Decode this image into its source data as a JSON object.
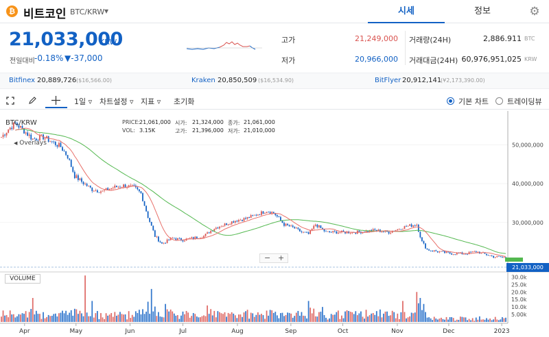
{
  "header": {
    "coin_icon": "bitcoin-icon",
    "coin_symbol_glyph": "₿",
    "coin_name": "비트코인",
    "pair": "BTC/KRW",
    "caret": "▾",
    "tabs": [
      {
        "label": "시세",
        "active": true
      },
      {
        "label": "정보",
        "active": false
      }
    ],
    "settings_icon": "gear-icon",
    "settings_glyph": "⚙"
  },
  "summary": {
    "price": "21,033,000",
    "unit": "KRW",
    "change_label": "전일대비",
    "change_pct": "-0.18%",
    "change_abs": "▼-37,000",
    "high_label": "고가",
    "high_value": "21,249,000",
    "low_label": "저가",
    "low_value": "20,966,000",
    "volume_label": "거래량(24H)",
    "volume_value": "2,886.911",
    "volume_unit": "BTC",
    "turnover_label": "거래대금(24H)",
    "turnover_value": "60,976,951,025",
    "turnover_unit": "KRW"
  },
  "exchanges": [
    {
      "name": "Bitfinex",
      "price": "20,889,726",
      "usd": "($16,566.00)"
    },
    {
      "name": "Kraken",
      "price": "20,850,509",
      "usd": "($16,534.90)"
    },
    {
      "name": "BitFlyer",
      "price": "20,912,141",
      "usd": "(¥2,173,390.00)"
    }
  ],
  "toolbar": {
    "fullscreen_icon": "fullscreen-icon",
    "draw_icon": "pencil-icon",
    "crosshair_icon": "crosshair-icon",
    "interval": "1일",
    "chart_settings": "차트설정",
    "indicators": "지표",
    "reset": "초기화",
    "basic_chart": "기본 차트",
    "trading_view": "트레이딩뷰",
    "dropdown_glyph": "▿"
  },
  "ohlc": {
    "price_label": "PRICE:",
    "price": "21,061,000",
    "vol_label": "VOL:",
    "vol": "3.15K",
    "open_label": "시가:",
    "open": "21,324,000",
    "high_label": "고가:",
    "high": "21,396,000",
    "close_label": "종가:",
    "close": "21,061,000",
    "low_label": "저가:",
    "low": "21,010,000"
  },
  "chart_labels": {
    "symbol": "BTC/KRW",
    "overlays": "Overlays",
    "volume": "VOLUME",
    "zoom_out": "−",
    "zoom_in": "+",
    "last_price": "21,033,000"
  },
  "colors": {
    "accent": "#1261c4",
    "up": "#d9534f",
    "down": "#1261c4",
    "ma_short": "#e8706a",
    "ma_long": "#53b84f",
    "high": "#d9534f"
  },
  "chart_data": {
    "type": "candlestick",
    "x_ticks": [
      "Apr",
      "May",
      "Jun",
      "Jul",
      "Aug",
      "Sep",
      "Oct",
      "Nov",
      "Dec",
      "2023"
    ],
    "y_ticks": [
      "50,000,000",
      "40,000,000",
      "30,000,000"
    ],
    "y_tick_values": [
      50000000,
      40000000,
      30000000
    ],
    "volume_ticks": [
      "30.0k",
      "25.0k",
      "20.0k",
      "15.0k",
      "10.0k",
      "5.00k"
    ],
    "volume_tick_values": [
      30000,
      25000,
      20000,
      15000,
      10000,
      5000
    ],
    "ylim": [
      18500000,
      58000000
    ],
    "volume_max": 32000,
    "last": 21033000,
    "close_anchors": [
      [
        0,
        52000000
      ],
      [
        4,
        54000000
      ],
      [
        8,
        55500000
      ],
      [
        12,
        54000000
      ],
      [
        18,
        51500000
      ],
      [
        24,
        52000000
      ],
      [
        30,
        50500000
      ],
      [
        34,
        49500000
      ],
      [
        38,
        47000000
      ],
      [
        42,
        42000000
      ],
      [
        46,
        40500000
      ],
      [
        52,
        38500000
      ],
      [
        58,
        38000000
      ],
      [
        64,
        39000000
      ],
      [
        70,
        39500000
      ],
      [
        76,
        39000000
      ],
      [
        80,
        37500000
      ],
      [
        84,
        31500000
      ],
      [
        88,
        26500000
      ],
      [
        92,
        24500000
      ],
      [
        98,
        26000000
      ],
      [
        104,
        25500000
      ],
      [
        110,
        26000000
      ],
      [
        116,
        26500000
      ],
      [
        122,
        28500000
      ],
      [
        128,
        29500000
      ],
      [
        134,
        30500000
      ],
      [
        140,
        31000000
      ],
      [
        146,
        32000000
      ],
      [
        152,
        33000000
      ],
      [
        156,
        32500000
      ],
      [
        162,
        29500000
      ],
      [
        168,
        28500000
      ],
      [
        172,
        27500000
      ],
      [
        176,
        27000000
      ],
      [
        180,
        29500000
      ],
      [
        186,
        27500000
      ],
      [
        194,
        27500000
      ],
      [
        204,
        27500000
      ],
      [
        214,
        28000000
      ],
      [
        222,
        27500000
      ],
      [
        232,
        29000000
      ],
      [
        238,
        29500000
      ],
      [
        241,
        25000000
      ],
      [
        244,
        23000000
      ],
      [
        250,
        22500000
      ],
      [
        258,
        22000000
      ],
      [
        266,
        22000000
      ],
      [
        272,
        22500000
      ],
      [
        276,
        22000000
      ],
      [
        282,
        21200000
      ],
      [
        288,
        21033000
      ]
    ],
    "volume_spikes": [
      [
        18,
        16000
      ],
      [
        48,
        31000
      ],
      [
        52,
        14000
      ],
      [
        84,
        13500
      ],
      [
        86,
        22000
      ],
      [
        94,
        12000
      ],
      [
        118,
        11000
      ],
      [
        176,
        14000
      ],
      [
        184,
        10000
      ],
      [
        230,
        14000
      ],
      [
        238,
        20000
      ],
      [
        240,
        16000
      ],
      [
        242,
        12000
      ]
    ]
  }
}
